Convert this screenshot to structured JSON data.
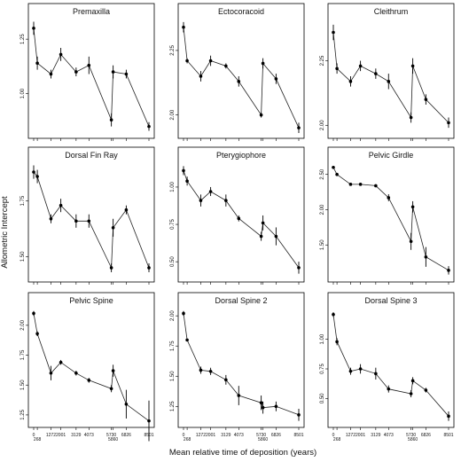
{
  "figure": {
    "ylabel": "Allometric Intercept",
    "xlabel": "Mean relative time of deposition (years)"
  },
  "chart_data": [
    {
      "type": "line",
      "title": "Premaxilla",
      "x": [
        0,
        268,
        1272,
        2001,
        3129,
        4073,
        5730,
        5860,
        6826,
        8501
      ],
      "y": [
        1.3,
        1.14,
        1.09,
        1.18,
        1.1,
        1.13,
        0.88,
        1.1,
        1.09,
        0.85
      ],
      "err": [
        0.03,
        0.03,
        0.02,
        0.03,
        0.02,
        0.04,
        0.03,
        0.03,
        0.02,
        0.02
      ],
      "ylim": [
        0.82,
        1.34
      ],
      "yticks": [
        1.0,
        1.25
      ]
    },
    {
      "type": "line",
      "title": "Ectocoracoid",
      "x": [
        0,
        268,
        1272,
        2001,
        3129,
        4073,
        5730,
        5860,
        6826,
        8501
      ],
      "y": [
        2.34,
        2.21,
        2.15,
        2.21,
        2.19,
        2.13,
        2.0,
        2.2,
        2.14,
        1.95
      ],
      "err": [
        0.02,
        0.01,
        0.02,
        0.02,
        0.01,
        0.02,
        0.01,
        0.02,
        0.02,
        0.02
      ],
      "ylim": [
        1.93,
        2.37
      ],
      "yticks": [
        2.0,
        2.25
      ]
    },
    {
      "type": "line",
      "title": "Cleithrum",
      "x": [
        0,
        268,
        1272,
        2001,
        3129,
        4073,
        5730,
        5860,
        6826,
        8501
      ],
      "y": [
        2.36,
        2.22,
        2.17,
        2.23,
        2.2,
        2.17,
        2.03,
        2.23,
        2.1,
        2.01
      ],
      "err": [
        0.03,
        0.02,
        0.02,
        0.02,
        0.02,
        0.03,
        0.02,
        0.03,
        0.02,
        0.02
      ],
      "ylim": [
        1.97,
        2.41
      ],
      "yticks": [
        2.0,
        2.25
      ]
    },
    {
      "type": "line",
      "title": "Dorsal Fin Ray",
      "x": [
        0,
        268,
        1272,
        2001,
        3129,
        4073,
        5730,
        5860,
        6826,
        8501
      ],
      "y": [
        1.88,
        1.86,
        1.67,
        1.73,
        1.66,
        1.66,
        1.45,
        1.63,
        1.71,
        1.45
      ],
      "err": [
        0.03,
        0.03,
        0.02,
        0.03,
        0.03,
        0.03,
        0.02,
        0.04,
        0.02,
        0.02
      ],
      "ylim": [
        1.41,
        1.92
      ],
      "yticks": [
        1.5,
        1.75
      ]
    },
    {
      "type": "line",
      "title": "Pterygiophore",
      "x": [
        0,
        268,
        1272,
        2001,
        3129,
        4073,
        5730,
        5860,
        6826,
        8501
      ],
      "y": [
        1.11,
        1.04,
        0.91,
        0.97,
        0.91,
        0.79,
        0.67,
        0.76,
        0.67,
        0.46
      ],
      "err": [
        0.03,
        0.03,
        0.04,
        0.03,
        0.04,
        0.02,
        0.03,
        0.05,
        0.06,
        0.04
      ],
      "ylim": [
        0.4,
        1.16
      ],
      "yticks": [
        0.5,
        0.75,
        1.0
      ]
    },
    {
      "type": "line",
      "title": "Pelvic Girdle",
      "x": [
        0,
        268,
        1272,
        2001,
        3129,
        4073,
        5730,
        5860,
        6826,
        8501
      ],
      "y": [
        2.6,
        2.5,
        2.36,
        2.36,
        2.34,
        2.17,
        1.55,
        2.04,
        1.33,
        1.14
      ],
      "err": [
        0.02,
        0.02,
        0.01,
        0.01,
        0.01,
        0.05,
        0.12,
        0.08,
        0.14,
        0.06
      ],
      "ylim": [
        1.05,
        2.66
      ],
      "yticks": [
        1.5,
        2.0,
        2.5
      ]
    },
    {
      "type": "line",
      "title": "Pelvic Spine",
      "x": [
        0,
        268,
        1272,
        2001,
        3129,
        4073,
        5730,
        5860,
        6826,
        8501
      ],
      "y": [
        2.1,
        1.93,
        1.6,
        1.69,
        1.6,
        1.54,
        1.47,
        1.62,
        1.34,
        1.2
      ],
      "err": [
        0.02,
        0.02,
        0.06,
        0.02,
        0.02,
        0.02,
        0.03,
        0.05,
        0.12,
        0.17
      ],
      "ylim": [
        1.19,
        2.14
      ],
      "yticks": [
        1.25,
        1.5,
        1.75,
        2.0
      ]
    },
    {
      "type": "line",
      "title": "Dorsal Spine 2",
      "x": [
        0,
        268,
        1272,
        2001,
        3129,
        4073,
        5730,
        5860,
        6826,
        8501
      ],
      "y": [
        2.02,
        1.8,
        1.55,
        1.54,
        1.47,
        1.34,
        1.28,
        1.24,
        1.25,
        1.18
      ],
      "err": [
        0.02,
        0.01,
        0.03,
        0.03,
        0.04,
        0.08,
        0.06,
        0.05,
        0.04,
        0.05
      ],
      "ylim": [
        1.12,
        2.06
      ],
      "yticks": [
        1.25,
        1.5,
        1.75,
        2.0
      ]
    },
    {
      "type": "line",
      "title": "Dorsal Spine 3",
      "x": [
        0,
        268,
        1272,
        2001,
        3129,
        4073,
        5730,
        5860,
        6826,
        8501
      ],
      "y": [
        1.21,
        0.98,
        0.73,
        0.75,
        0.71,
        0.58,
        0.54,
        0.65,
        0.57,
        0.35
      ],
      "err": [
        0.02,
        0.03,
        0.03,
        0.04,
        0.05,
        0.03,
        0.03,
        0.03,
        0.02,
        0.04
      ],
      "ylim": [
        0.3,
        1.26
      ],
      "yticks": [
        0.5,
        0.75,
        1.0
      ]
    }
  ]
}
